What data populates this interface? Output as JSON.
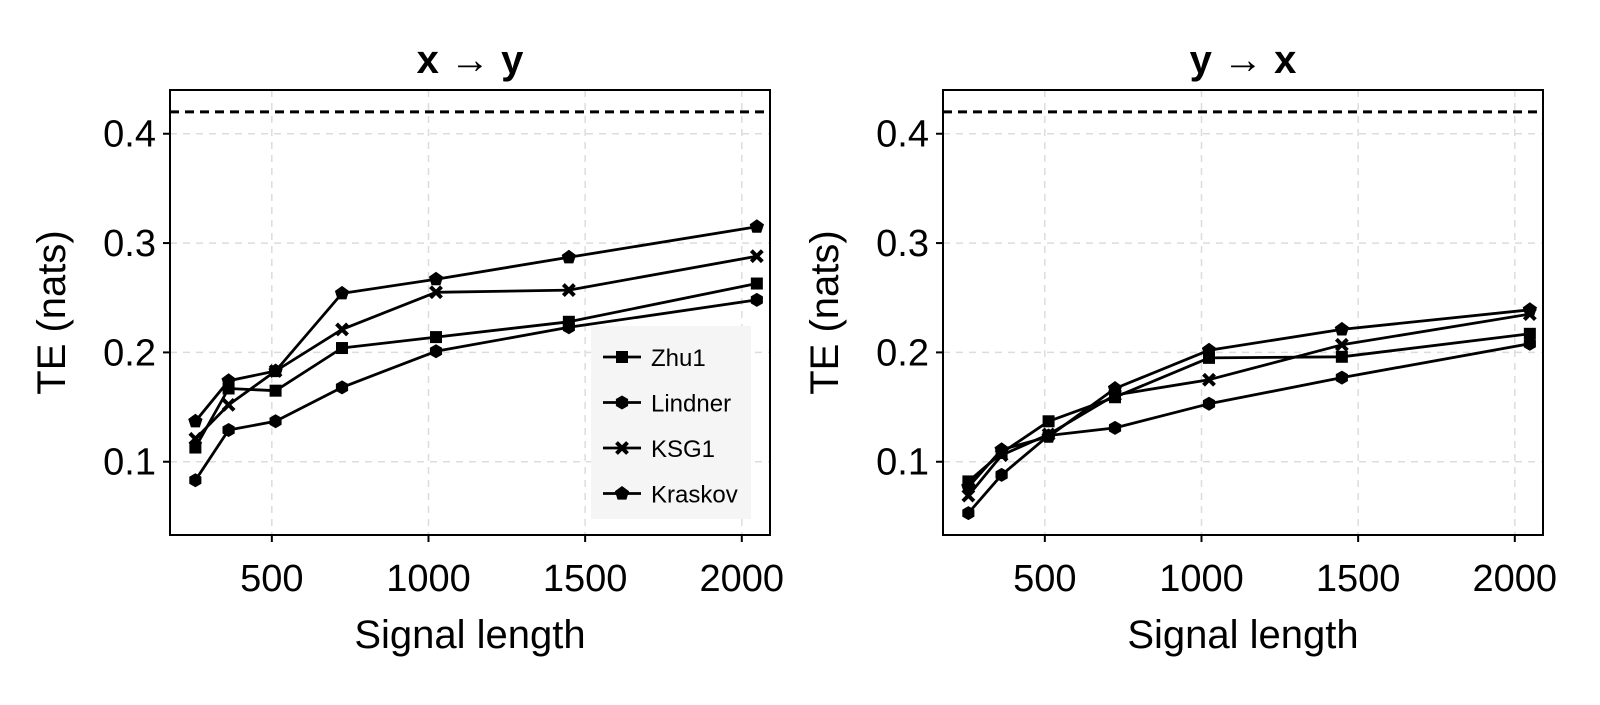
{
  "chart_data": [
    {
      "type": "line",
      "title": "x → y",
      "xlabel": "Signal length",
      "ylabel": "TE (nats)",
      "xlim": [
        175,
        2090
      ],
      "ylim": [
        0.033,
        0.44
      ],
      "xticks": [
        500,
        1000,
        1500,
        2000
      ],
      "xtick_labels": [
        "500",
        "1000",
        "1500",
        "2000"
      ],
      "yticks": [
        0.1,
        0.2,
        0.3,
        0.4
      ],
      "ytick_labels": [
        "0.1",
        "0.2",
        "0.3",
        "0.4"
      ],
      "grid": true,
      "reference_line": {
        "y": 0.42,
        "style": "dashed"
      },
      "x": [
        256,
        362,
        512,
        724,
        1024,
        1448,
        2048
      ],
      "series": [
        {
          "name": "Zhu1",
          "marker": "square",
          "values": [
            0.113,
            0.167,
            0.165,
            0.204,
            0.214,
            0.228,
            0.263
          ]
        },
        {
          "name": "Lindner",
          "marker": "hexagon",
          "values": [
            0.083,
            0.129,
            0.137,
            0.168,
            0.201,
            0.223,
            0.248
          ]
        },
        {
          "name": "KSG1",
          "marker": "cross",
          "values": [
            0.121,
            0.152,
            0.183,
            0.221,
            0.255,
            0.257,
            0.288
          ]
        },
        {
          "name": "Kraskov",
          "marker": "pentagon",
          "values": [
            0.137,
            0.174,
            0.183,
            0.254,
            0.267,
            0.287,
            0.315
          ]
        }
      ],
      "legend": {
        "show": true,
        "position": "bottom-right"
      }
    },
    {
      "type": "line",
      "title": "y → x",
      "xlabel": "Signal length",
      "ylabel": "TE (nats)",
      "xlim": [
        175,
        2090
      ],
      "ylim": [
        0.033,
        0.44
      ],
      "xticks": [
        500,
        1000,
        1500,
        2000
      ],
      "xtick_labels": [
        "500",
        "1000",
        "1500",
        "2000"
      ],
      "yticks": [
        0.1,
        0.2,
        0.3,
        0.4
      ],
      "ytick_labels": [
        "0.1",
        "0.2",
        "0.3",
        "0.4"
      ],
      "grid": true,
      "reference_line": {
        "y": 0.42,
        "style": "dashed"
      },
      "x": [
        256,
        362,
        512,
        724,
        1024,
        1448,
        2048
      ],
      "series": [
        {
          "name": "Zhu1",
          "marker": "square",
          "values": [
            0.082,
            0.108,
            0.137,
            0.159,
            0.195,
            0.196,
            0.217
          ]
        },
        {
          "name": "Lindner",
          "marker": "hexagon",
          "values": [
            0.053,
            0.088,
            0.124,
            0.131,
            0.153,
            0.177,
            0.208
          ]
        },
        {
          "name": "KSG1",
          "marker": "cross",
          "values": [
            0.069,
            0.106,
            0.125,
            0.161,
            0.175,
            0.207,
            0.235
          ]
        },
        {
          "name": "Kraskov",
          "marker": "pentagon",
          "values": [
            0.077,
            0.111,
            0.123,
            0.167,
            0.202,
            0.221,
            0.239
          ]
        }
      ],
      "legend": {
        "show": false
      }
    }
  ]
}
